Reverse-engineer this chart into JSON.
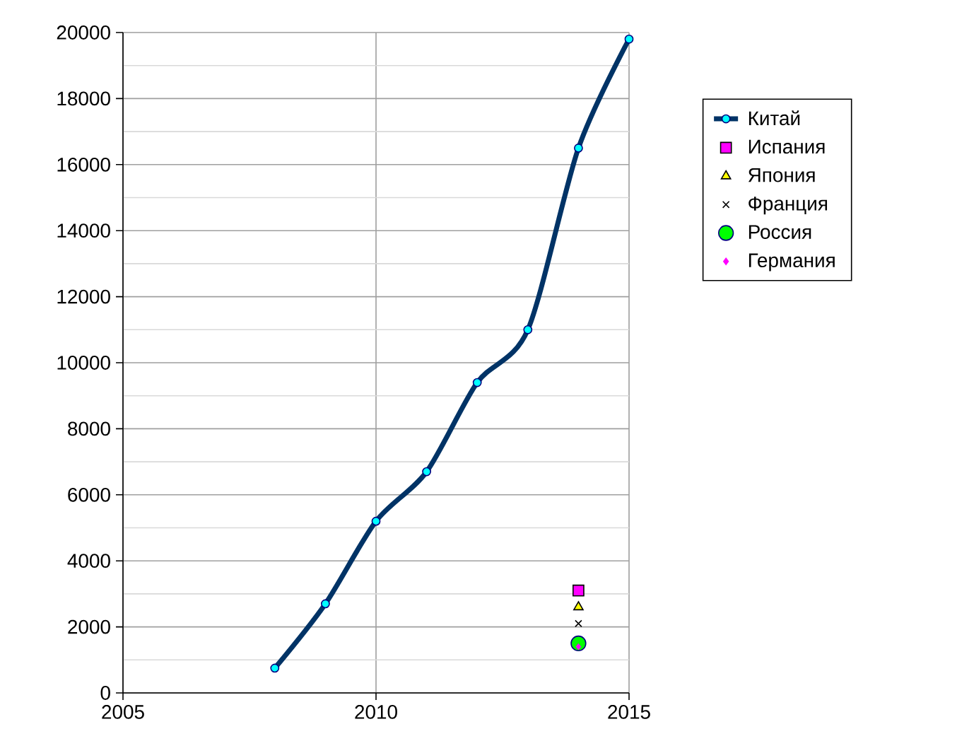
{
  "chart_data": {
    "type": "line",
    "xlim": [
      2005,
      2015
    ],
    "ylim": [
      0,
      20000
    ],
    "xticks": [
      2005,
      2010,
      2015
    ],
    "yticks": [
      0,
      2000,
      4000,
      6000,
      8000,
      10000,
      12000,
      14000,
      16000,
      18000,
      20000
    ],
    "grid": true,
    "legend": "right",
    "series": [
      {
        "name": "Китай",
        "color": "#003366",
        "marker": "circle",
        "x": [
          2008,
          2009,
          2010,
          2011,
          2012,
          2013,
          2014,
          2015
        ],
        "values": [
          750,
          2700,
          5200,
          6700,
          9400,
          11000,
          16500,
          19800
        ]
      },
      {
        "name": "Испания",
        "type": "scatter",
        "color": "#ff00ff",
        "marker": "square",
        "x": [
          2014
        ],
        "values": [
          3100
        ]
      },
      {
        "name": "Япония",
        "type": "scatter",
        "color": "#ffff00",
        "marker": "triangle",
        "x": [
          2014
        ],
        "values": [
          2600
        ]
      },
      {
        "name": "Франция",
        "type": "scatter",
        "color": "#000000",
        "marker": "cross",
        "x": [
          2014
        ],
        "values": [
          2100
        ]
      },
      {
        "name": "Россия",
        "type": "scatter",
        "color": "#00ff00",
        "marker": "circle",
        "x": [
          2014
        ],
        "values": [
          1500
        ]
      },
      {
        "name": "Германия",
        "type": "scatter",
        "color": "#ff00ff",
        "marker": "diamond",
        "x": [
          2014
        ],
        "values": [
          1400
        ]
      }
    ]
  }
}
